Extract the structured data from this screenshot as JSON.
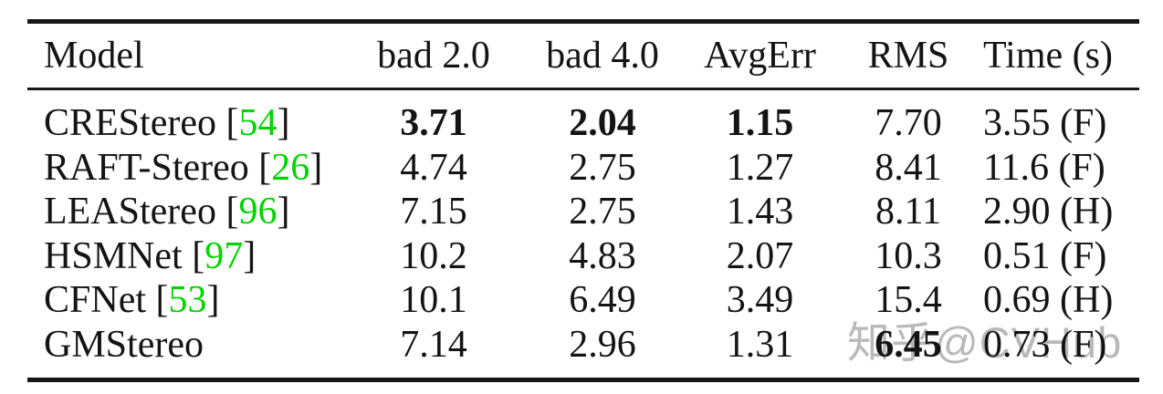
{
  "table": {
    "columns": [
      "Model",
      "bad 2.0",
      "bad 4.0",
      "AvgErr",
      "RMS",
      "Time (s)"
    ],
    "rows": [
      {
        "model": "CREStereo",
        "cite_l": " [",
        "cite": "54",
        "cite_r": "]",
        "bad2": "3.71",
        "bad4": "2.04",
        "avgerr": "1.15",
        "rms": "7.70",
        "time": "3.55 (F)"
      },
      {
        "model": "RAFT-Stereo",
        "cite_l": " [",
        "cite": "26",
        "cite_r": "]",
        "bad2": "4.74",
        "bad4": "2.75",
        "avgerr": "1.27",
        "rms": "8.41",
        "time": "11.6 (F)"
      },
      {
        "model": "LEAStereo",
        "cite_l": " [",
        "cite": "96",
        "cite_r": "]",
        "bad2": "7.15",
        "bad4": "2.75",
        "avgerr": "1.43",
        "rms": "8.11",
        "time": "2.90 (H)"
      },
      {
        "model": "HSMNet",
        "cite_l": " [",
        "cite": "97",
        "cite_r": "]",
        "bad2": "10.2",
        "bad4": "4.83",
        "avgerr": "2.07",
        "rms": "10.3",
        "time": "0.51 (F)"
      },
      {
        "model": "CFNet",
        "cite_l": " [",
        "cite": "53",
        "cite_r": "]",
        "bad2": "10.1",
        "bad4": "6.49",
        "avgerr": "3.49",
        "rms": "15.4",
        "time": "0.69 (H)"
      },
      {
        "model": "GMStereo",
        "bad2": "7.14",
        "bad4": "2.96",
        "avgerr": "1.31",
        "rms": "6.45",
        "time": "0.73 (F)"
      }
    ]
  },
  "watermark": {
    "text": "知乎@CVHub"
  },
  "colors": {
    "citation_green": "#00d400",
    "rule_black": "#161616",
    "watermark_gray": "#b9b9b9"
  }
}
